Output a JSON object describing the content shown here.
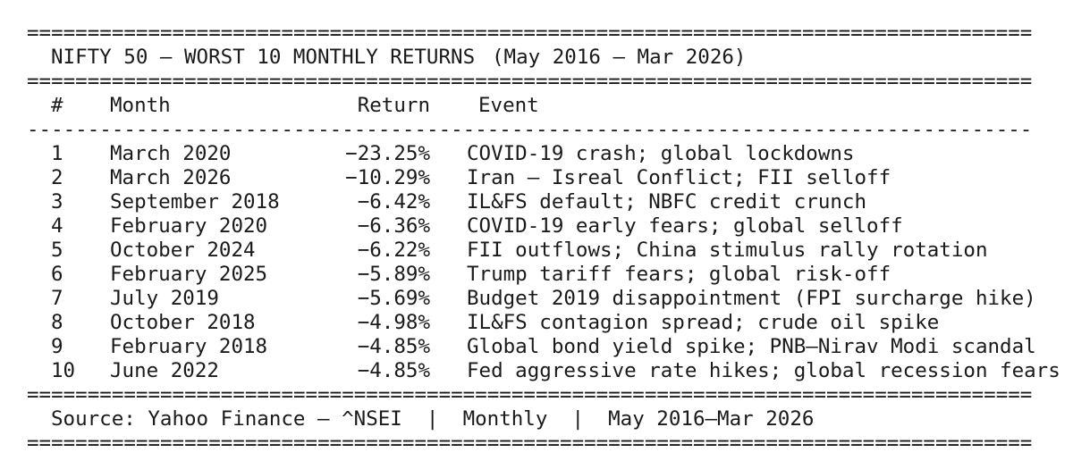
{
  "meta": {
    "background": "#ffffff",
    "text_color": "#1a1a1a"
  },
  "separators": {
    "double": "===================================================================================",
    "single": "-----------------------------------------------------------------------------------"
  },
  "header": {
    "title": "NIFTY 50 — WORST 10 MONTHLY RETURNS",
    "subtitle": "(May 2016 — Mar 2026)"
  },
  "table": {
    "headers": {
      "rank": "#",
      "month": "Month",
      "ret": "Return",
      "event": "Event"
    },
    "rows": [
      {
        "rank": "1",
        "month": "March 2020",
        "ret": "−23.25%",
        "event": "COVID-19 crash; global lockdowns"
      },
      {
        "rank": "2",
        "month": "March 2026",
        "ret": "−10.29%",
        "event": "Iran – Isreal Conflict; FII selloff"
      },
      {
        "rank": "3",
        "month": "September 2018",
        "ret": "−6.42%",
        "event": "IL&FS default; NBFC credit crunch"
      },
      {
        "rank": "4",
        "month": "February 2020",
        "ret": "−6.36%",
        "event": "COVID-19 early fears; global selloff"
      },
      {
        "rank": "5",
        "month": "October 2024",
        "ret": "−6.22%",
        "event": "FII outflows; China stimulus rally rotation"
      },
      {
        "rank": "6",
        "month": "February 2025",
        "ret": "−5.89%",
        "event": "Trump tariff fears; global risk-off"
      },
      {
        "rank": "7",
        "month": "July 2019",
        "ret": "−5.69%",
        "event": "Budget 2019 disappointment (FPI surcharge hike)"
      },
      {
        "rank": "8",
        "month": "October 2018",
        "ret": "−4.98%",
        "event": "IL&FS contagion spread; crude oil spike"
      },
      {
        "rank": "9",
        "month": "February 2018",
        "ret": "−4.85%",
        "event": "Global bond yield spike; PNB–Nirav Modi scandal"
      },
      {
        "rank": "10",
        "month": "June 2022",
        "ret": "−4.85%",
        "event": "Fed aggressive rate hikes; global recession fears"
      }
    ]
  },
  "footer": {
    "source_line": "Source: Yahoo Finance — ^NSEI  |  Monthly  |  May 2016—Mar 2026"
  },
  "chart_data": {
    "type": "table",
    "title": "NIFTY 50 — WORST 10 MONTHLY RETURNS (May 2016 — Mar 2026)",
    "columns": [
      "#",
      "Month",
      "Return",
      "Event"
    ],
    "rows": [
      [
        1,
        "March 2020",
        -23.25,
        "COVID-19 crash; global lockdowns"
      ],
      [
        2,
        "March 2026",
        -10.29,
        "Iran – Isreal Conflict; FII selloff"
      ],
      [
        3,
        "September 2018",
        -6.42,
        "IL&FS default; NBFC credit crunch"
      ],
      [
        4,
        "February 2020",
        -6.36,
        "COVID-19 early fears; global selloff"
      ],
      [
        5,
        "October 2024",
        -6.22,
        "FII outflows; China stimulus rally rotation"
      ],
      [
        6,
        "February 2025",
        -5.89,
        "Trump tariff fears; global risk-off"
      ],
      [
        7,
        "July 2019",
        -5.69,
        "Budget 2019 disappointment (FPI surcharge hike)"
      ],
      [
        8,
        "October 2018",
        -4.98,
        "IL&FS contagion spread; crude oil spike"
      ],
      [
        9,
        "February 2018",
        -4.85,
        "Global bond yield spike; PNB–Nirav Modi scandal"
      ],
      [
        10,
        "June 2022",
        -4.85,
        "Fed aggressive rate hikes; global recession fears"
      ]
    ],
    "return_unit": "%",
    "source": "Yahoo Finance — ^NSEI",
    "frequency": "Monthly",
    "period": "May 2016—Mar 2026"
  }
}
